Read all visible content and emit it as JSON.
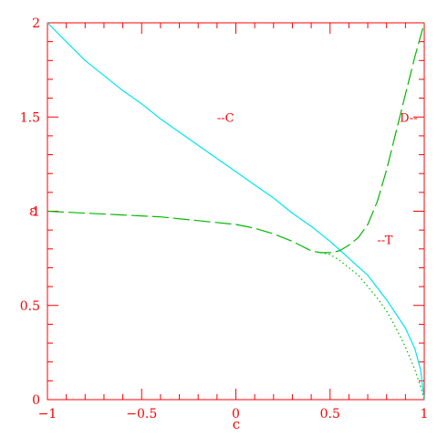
{
  "chart_data": {
    "type": "line",
    "xlabel": "c",
    "ylabel": "ε",
    "xlim": [
      -1,
      1
    ],
    "ylim": [
      0,
      2
    ],
    "x_ticks": [
      -1,
      -0.5,
      0,
      0.5,
      1
    ],
    "x_tick_labels": [
      "−1",
      "−0.5",
      "0",
      "0.5",
      "1"
    ],
    "y_ticks": [
      0,
      0.5,
      1,
      1.5,
      2
    ],
    "y_tick_labels": [
      "0",
      "0.5",
      "1",
      "1.5",
      "2"
    ],
    "grid": false,
    "colors": {
      "axes": "#ff0000",
      "C": "#00e5ee",
      "D": "#00b800",
      "T": "#00b800"
    },
    "series": [
      {
        "name": "C",
        "style": "solid",
        "color": "#00e5ee",
        "points": [
          [
            -1.0,
            2.0
          ],
          [
            -0.9,
            1.9
          ],
          [
            -0.8,
            1.8
          ],
          [
            -0.7,
            1.72
          ],
          [
            -0.6,
            1.64
          ],
          [
            -0.5,
            1.57
          ],
          [
            -0.4,
            1.49
          ],
          [
            -0.3,
            1.42
          ],
          [
            -0.2,
            1.35
          ],
          [
            -0.1,
            1.28
          ],
          [
            0.0,
            1.21
          ],
          [
            0.1,
            1.14
          ],
          [
            0.2,
            1.07
          ],
          [
            0.3,
            0.99
          ],
          [
            0.4,
            0.92
          ],
          [
            0.5,
            0.84
          ],
          [
            0.6,
            0.75
          ],
          [
            0.7,
            0.66
          ],
          [
            0.8,
            0.53
          ],
          [
            0.9,
            0.38
          ],
          [
            0.95,
            0.27
          ],
          [
            0.98,
            0.16
          ],
          [
            1.0,
            0.0
          ]
        ]
      },
      {
        "name": "D",
        "style": "dashed",
        "color": "#00b800",
        "points": [
          [
            -1.0,
            1.0
          ],
          [
            -0.8,
            0.99
          ],
          [
            -0.6,
            0.98
          ],
          [
            -0.4,
            0.97
          ],
          [
            -0.2,
            0.95
          ],
          [
            0.0,
            0.93
          ],
          [
            0.1,
            0.91
          ],
          [
            0.2,
            0.88
          ],
          [
            0.3,
            0.84
          ],
          [
            0.4,
            0.79
          ],
          [
            0.45,
            0.78
          ],
          [
            0.5,
            0.78
          ],
          [
            0.55,
            0.79
          ],
          [
            0.6,
            0.82
          ],
          [
            0.65,
            0.86
          ],
          [
            0.7,
            0.93
          ],
          [
            0.75,
            1.05
          ],
          [
            0.8,
            1.22
          ],
          [
            0.85,
            1.42
          ],
          [
            0.9,
            1.62
          ],
          [
            0.95,
            1.82
          ],
          [
            1.0,
            2.0
          ]
        ]
      },
      {
        "name": "T",
        "style": "dotted",
        "color": "#00b800",
        "points": [
          [
            0.45,
            0.78
          ],
          [
            0.5,
            0.77
          ],
          [
            0.55,
            0.74
          ],
          [
            0.6,
            0.7
          ],
          [
            0.65,
            0.66
          ],
          [
            0.7,
            0.6
          ],
          [
            0.75,
            0.54
          ],
          [
            0.8,
            0.47
          ],
          [
            0.85,
            0.38
          ],
          [
            0.9,
            0.28
          ],
          [
            0.95,
            0.16
          ],
          [
            0.98,
            0.07
          ],
          [
            1.0,
            0.0
          ]
        ]
      }
    ],
    "annotations": [
      {
        "text": "--C",
        "x": -0.1,
        "y": 1.5
      },
      {
        "text": "D--",
        "x": 0.87,
        "y": 1.5
      },
      {
        "text": "--T",
        "x": 0.75,
        "y": 0.85
      }
    ]
  }
}
